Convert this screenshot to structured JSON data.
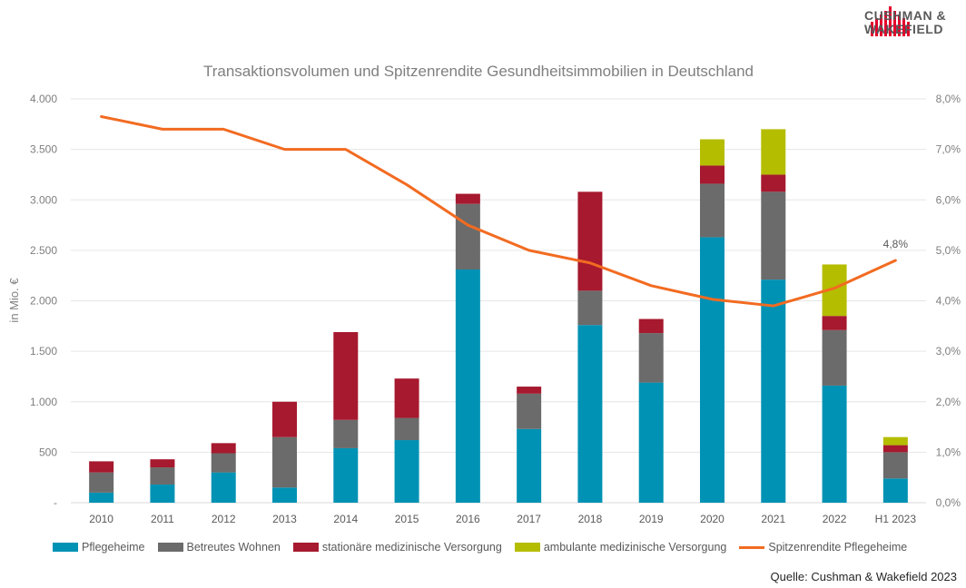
{
  "brand": {
    "line1": "CUSHMAN &",
    "line2": "WAKEFIELD",
    "color": "#e4002b"
  },
  "source": "Quelle: Cushman & Wakefield 2023",
  "chart_data": {
    "type": "bar",
    "stacked": true,
    "title": "Transaktionsvolumen und Spitzenrendite Gesundheitsimmobilien in Deutschland",
    "ylabel": "in Mio. €",
    "ylim": [
      0,
      4000
    ],
    "y2lim": [
      0,
      8
    ],
    "yticks": [
      "-",
      "500",
      "1.000",
      "1.500",
      "2.000",
      "2.500",
      "3.000",
      "3.500",
      "4.000"
    ],
    "y2ticks": [
      "0,0%",
      "1,0%",
      "2,0%",
      "3,0%",
      "4,0%",
      "5,0%",
      "6,0%",
      "7,0%",
      "8,0%"
    ],
    "categories": [
      "2010",
      "2011",
      "2012",
      "2013",
      "2014",
      "2015",
      "2016",
      "2017",
      "2018",
      "2019",
      "2020",
      "2021",
      "2022",
      "H1 2023"
    ],
    "series": [
      {
        "name": "Pflegeheime",
        "color": "#0092b4",
        "values": [
          100,
          180,
          300,
          150,
          540,
          620,
          2310,
          730,
          1760,
          1190,
          2630,
          2210,
          1160,
          240
        ]
      },
      {
        "name": "Betreutes Wohnen",
        "color": "#6b6b6b",
        "values": [
          200,
          170,
          190,
          500,
          280,
          220,
          650,
          350,
          340,
          490,
          530,
          870,
          550,
          260
        ]
      },
      {
        "name": "stationäre medizinische Versorgung",
        "color": "#a6192e",
        "values": [
          110,
          80,
          100,
          350,
          870,
          390,
          100,
          70,
          980,
          140,
          180,
          170,
          140,
          70
        ]
      },
      {
        "name": "ambulante medizinische Versorgung",
        "color": "#b5bd00",
        "values": [
          0,
          0,
          0,
          0,
          0,
          0,
          0,
          0,
          0,
          0,
          260,
          450,
          510,
          80
        ]
      }
    ],
    "line": {
      "name": "Spitzenrendite Pflegeheime",
      "color": "#f26b21",
      "axis": "right",
      "values": [
        7.65,
        7.4,
        7.4,
        7.0,
        7.0,
        6.3,
        5.5,
        5.0,
        4.75,
        4.3,
        4.03,
        3.9,
        4.25,
        4.8
      ],
      "last_label": "4,8%"
    }
  }
}
